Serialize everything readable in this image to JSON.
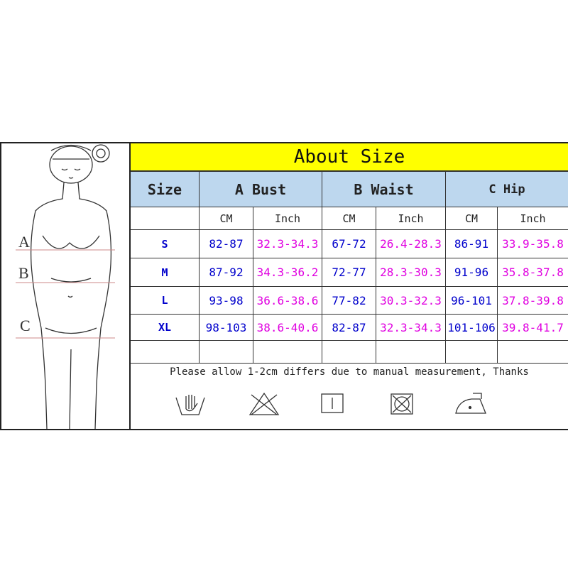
{
  "title": "About Size",
  "headers": {
    "size": "Size",
    "bust": "A Bust",
    "waist": "B Waist",
    "hip": "C Hip"
  },
  "units": [
    "CM",
    "Inch",
    "CM",
    "Inch",
    "CM",
    "Inch"
  ],
  "rows": [
    {
      "size": "S",
      "vals": [
        "82-87",
        "32.3-34.3",
        "67-72",
        "26.4-28.3",
        "86-91",
        "33.9-35.8"
      ]
    },
    {
      "size": "M",
      "vals": [
        "87-92",
        "34.3-36.2",
        "72-77",
        "28.3-30.3",
        "91-96",
        "35.8-37.8"
      ]
    },
    {
      "size": "L",
      "vals": [
        "93-98",
        "36.6-38.6",
        "77-82",
        "30.3-32.3",
        "96-101",
        "37.8-39.8"
      ]
    },
    {
      "size": "XL",
      "vals": [
        "98-103",
        "38.6-40.6",
        "82-87",
        "32.3-34.3",
        "101-106",
        "39.8-41.7"
      ]
    }
  ],
  "note": "Please allow 1-2cm differs due to manual measurement, Thanks",
  "figure_labels": [
    "A",
    "B",
    "C"
  ],
  "care_icons": [
    "hand-wash-icon",
    "do-not-bleach-icon",
    "line-dry-icon",
    "do-not-tumble-dry-icon",
    "iron-low-icon"
  ],
  "colors": {
    "title_bg": "#ffff00",
    "header_bg": "#bdd7ee",
    "cm_text": "#0000cc",
    "inch_text": "#e000e0"
  }
}
